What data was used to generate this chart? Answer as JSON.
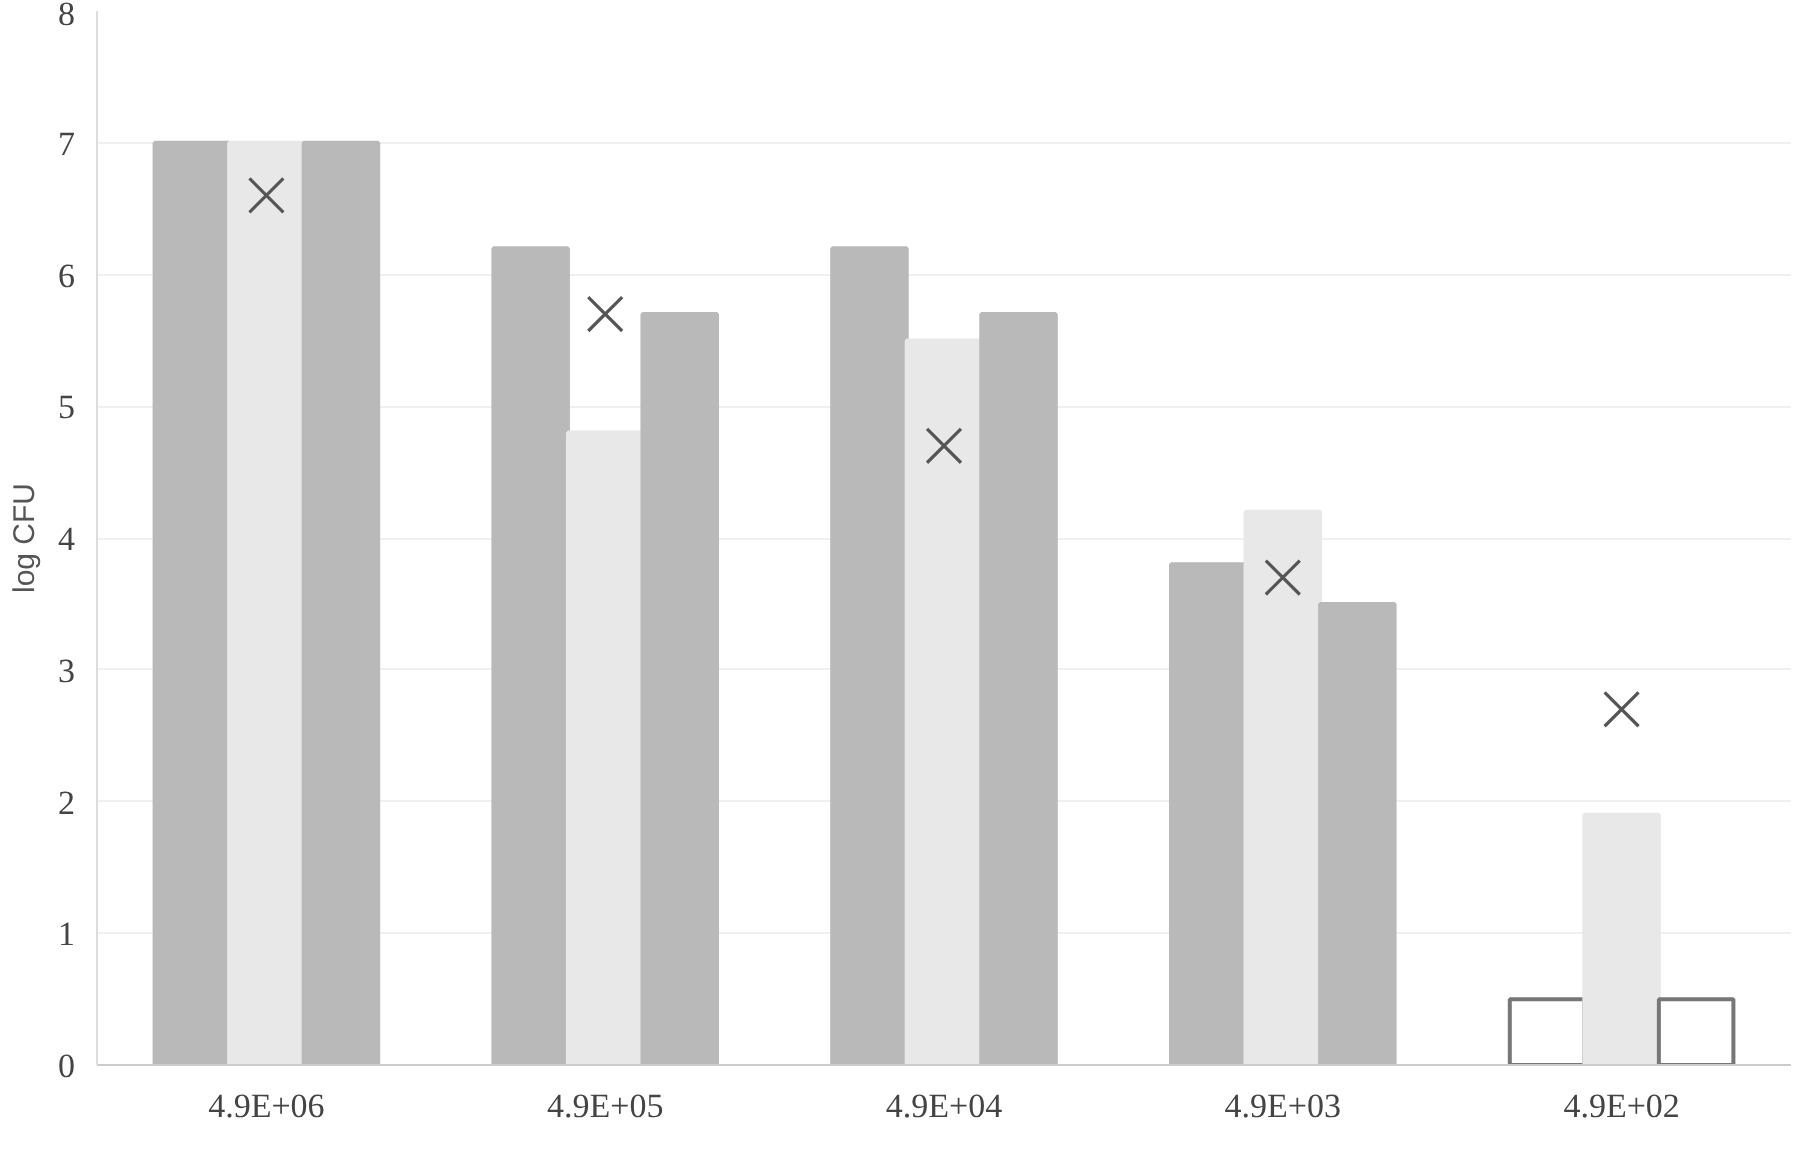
{
  "chart_data": {
    "type": "bar",
    "ylabel": "log CFU",
    "categories": [
      "4.9E+06",
      "4.9E+05",
      "4.9E+04",
      "4.9E+03",
      "4.9E+02"
    ],
    "series": [
      {
        "color": "#b9b9b9",
        "colors": [
          "#b9b9b9",
          "#b9b9b9",
          "#b9b9b9",
          "#b9b9b9",
          "#ffffff"
        ],
        "values": [
          7.0,
          6.2,
          6.2,
          3.8,
          0.5
        ]
      },
      {
        "color": "#e8e8e8",
        "values": [
          7.0,
          4.8,
          5.5,
          4.2,
          1.9
        ]
      },
      {
        "color": "#b9b9b9",
        "colors": [
          "#b9b9b9",
          "#b9b9b9",
          "#b9b9b9",
          "#b9b9b9",
          "#ffffff"
        ],
        "values": [
          7.0,
          5.7,
          5.7,
          3.5,
          0.5
        ]
      },
      {
        "type": "scatter",
        "color": "#555555",
        "marker": "cross",
        "x": [
          "4.9E+06",
          "4.9E+05",
          "4.9E+04",
          "4.9E+03",
          "4.9E+02"
        ],
        "values": [
          6.6,
          5.7,
          4.7,
          3.7,
          2.7
        ]
      }
    ],
    "ylim": [
      0,
      8
    ],
    "yticks": [
      0,
      1,
      2,
      3,
      4,
      5,
      6,
      7,
      8
    ],
    "grid": "y"
  }
}
